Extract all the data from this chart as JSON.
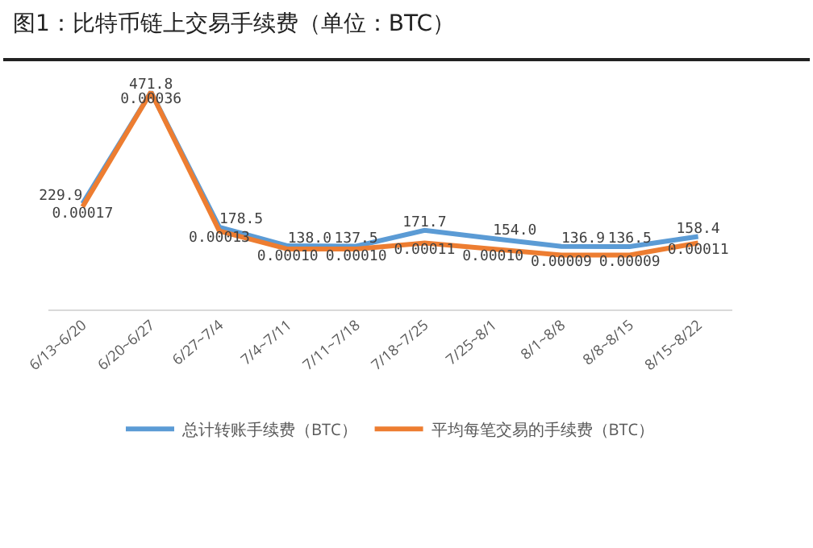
{
  "chart_data": {
    "type": "line",
    "title": "图1：比特币链上交易手续费（单位：BTC）",
    "categories": [
      "6/13~6/20",
      "6/20~6/27",
      "6/27~7/4",
      "7/4~7/11",
      "7/11~7/18",
      "7/18~7/25",
      "7/25~8/1",
      "8/1~8/8",
      "8/8~8/15",
      "8/15~8/22"
    ],
    "series": [
      {
        "name": "总计转账手续费（BTC）",
        "color": "#5b9bd5",
        "values": [
          229.9,
          471.8,
          178.5,
          138.0,
          137.5,
          171.7,
          154.0,
          136.9,
          136.5,
          158.4
        ],
        "value_labels": [
          "229.9",
          "471.8",
          "178.5",
          "138.0",
          "137.5",
          "171.7",
          "154.0",
          "136.9",
          "136.5",
          "158.4"
        ]
      },
      {
        "name": "平均每笔交易的手续费（BTC）",
        "color": "#ed7d31",
        "axis": "y2",
        "values": [
          0.00017,
          0.00036,
          0.00013,
          0.0001,
          0.0001,
          0.00011,
          0.0001,
          9e-05,
          9e-05,
          0.00011
        ],
        "value_labels": [
          "0.00017",
          "0.00036",
          "0.00013",
          "0.00010",
          "0.00010",
          "0.00011",
          "0.00010",
          "0.00009",
          "0.00009",
          "0.00011"
        ]
      }
    ],
    "legend": "bottom",
    "marker": "none",
    "line_style": "solid"
  }
}
